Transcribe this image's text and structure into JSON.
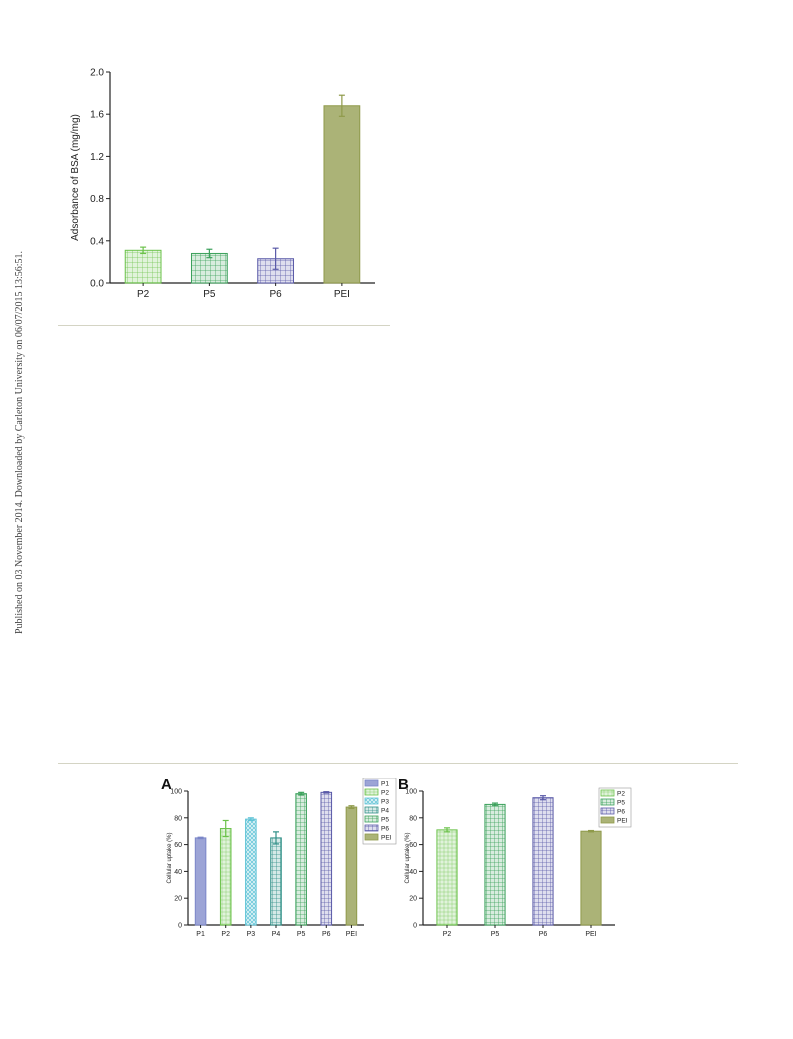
{
  "side_note": "Published on 03 November 2014. Downloaded by Carleton University on 06/07/2015 13:56:51.",
  "colors": {
    "P1": "#7b86c8",
    "P2": "#6bc24a",
    "P3": "#5fc3d6",
    "P4": "#2f8f87",
    "P5": "#3aa05a",
    "P6": "#5a5aa8",
    "PEI": "#8f9a4a"
  },
  "chart_data": [
    {
      "type": "bar",
      "ylabel": "Adsorbance of BSA (mg/mg)",
      "xlabel": "",
      "categories": [
        "P2",
        "P5",
        "P6",
        "PEI"
      ],
      "values": [
        0.31,
        0.28,
        0.23,
        1.68
      ],
      "errors": [
        0.03,
        0.04,
        0.1,
        0.1
      ],
      "ylim": [
        0,
        2.0
      ],
      "yticks": [
        "0.0",
        "0.4",
        "0.8",
        "1.2",
        "1.6",
        "2.0"
      ],
      "grid": false
    },
    {
      "type": "bar",
      "panel": "A",
      "ylabel": "Cellular uptake (%)",
      "xlabel": "",
      "categories": [
        "P1",
        "P2",
        "P3",
        "P4",
        "P5",
        "P6",
        "PEI"
      ],
      "values": [
        65,
        72,
        79,
        65,
        98,
        99,
        88
      ],
      "errors": [
        0.5,
        6,
        1,
        4.5,
        1,
        0.5,
        1
      ],
      "ylim": [
        0,
        100
      ],
      "yticks": [
        "0",
        "20",
        "40",
        "60",
        "80",
        "100"
      ],
      "legend": [
        "P1",
        "P2",
        "P3",
        "P4",
        "P5",
        "P6",
        "PEI"
      ],
      "legend_position": "top-right",
      "grid": false
    },
    {
      "type": "bar",
      "panel": "B",
      "ylabel": "Cellular uptake (%)",
      "xlabel": "",
      "categories": [
        "P2",
        "P5",
        "P6",
        "PEI"
      ],
      "values": [
        71,
        90,
        95,
        70
      ],
      "errors": [
        1.5,
        1,
        1.5,
        0.5
      ],
      "ylim": [
        0,
        100
      ],
      "yticks": [
        "0",
        "20",
        "40",
        "60",
        "80",
        "100"
      ],
      "legend": [
        "P2",
        "P5",
        "P6",
        "PEI"
      ],
      "legend_position": "top-right",
      "grid": false
    }
  ]
}
